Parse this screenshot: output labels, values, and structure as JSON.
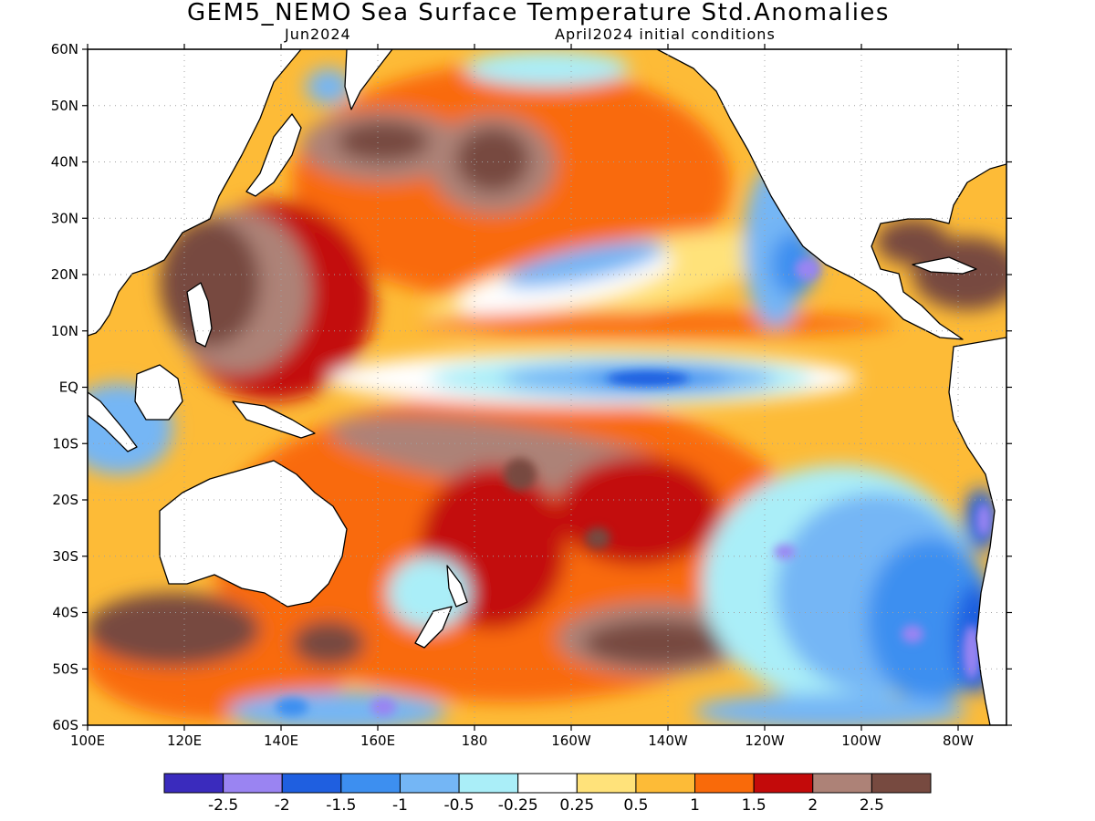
{
  "title": "GEM5_NEMO Sea Surface Temperature Std.Anomalies",
  "subtitle_left": "Jun2024",
  "subtitle_right": "April2024 initial conditions",
  "map": {
    "lon_range": [
      100,
      290
    ],
    "lat_range": [
      -60,
      60
    ],
    "lat_ticks": [
      {
        "lat": 60,
        "label": "60N"
      },
      {
        "lat": 50,
        "label": "50N"
      },
      {
        "lat": 40,
        "label": "40N"
      },
      {
        "lat": 30,
        "label": "30N"
      },
      {
        "lat": 20,
        "label": "20N"
      },
      {
        "lat": 10,
        "label": "10N"
      },
      {
        "lat": 0,
        "label": "EQ"
      },
      {
        "lat": -10,
        "label": "10S"
      },
      {
        "lat": -20,
        "label": "20S"
      },
      {
        "lat": -30,
        "label": "30S"
      },
      {
        "lat": -40,
        "label": "40S"
      },
      {
        "lat": -50,
        "label": "50S"
      },
      {
        "lat": -60,
        "label": "60S"
      }
    ],
    "lon_ticks": [
      {
        "lon": 100,
        "label": "100E"
      },
      {
        "lon": 120,
        "label": "120E"
      },
      {
        "lon": 140,
        "label": "140E"
      },
      {
        "lon": 160,
        "label": "160E"
      },
      {
        "lon": 180,
        "label": "180"
      },
      {
        "lon": 200,
        "label": "160W"
      },
      {
        "lon": 220,
        "label": "140W"
      },
      {
        "lon": 240,
        "label": "120W"
      },
      {
        "lon": 260,
        "label": "100W"
      },
      {
        "lon": 280,
        "label": "80W"
      }
    ],
    "grid": true
  },
  "colorbar": {
    "colors": [
      "#3a2bbd",
      "#9a84f2",
      "#1f5fe0",
      "#3d8ff0",
      "#74b6f5",
      "#aaeef8",
      "#ffffff",
      "#ffe27a",
      "#fdbb37",
      "#f96a0a",
      "#c30a0a",
      "#ad8277",
      "#774a40"
    ],
    "labels": [
      "-2.5",
      "-2",
      "-1.5",
      "-1",
      "-0.5",
      "-0.25",
      "0.25",
      "0.5",
      "1",
      "1.5",
      "2",
      "2.5"
    ]
  },
  "land_color": "#ffffff",
  "coast_color": "#000000"
}
